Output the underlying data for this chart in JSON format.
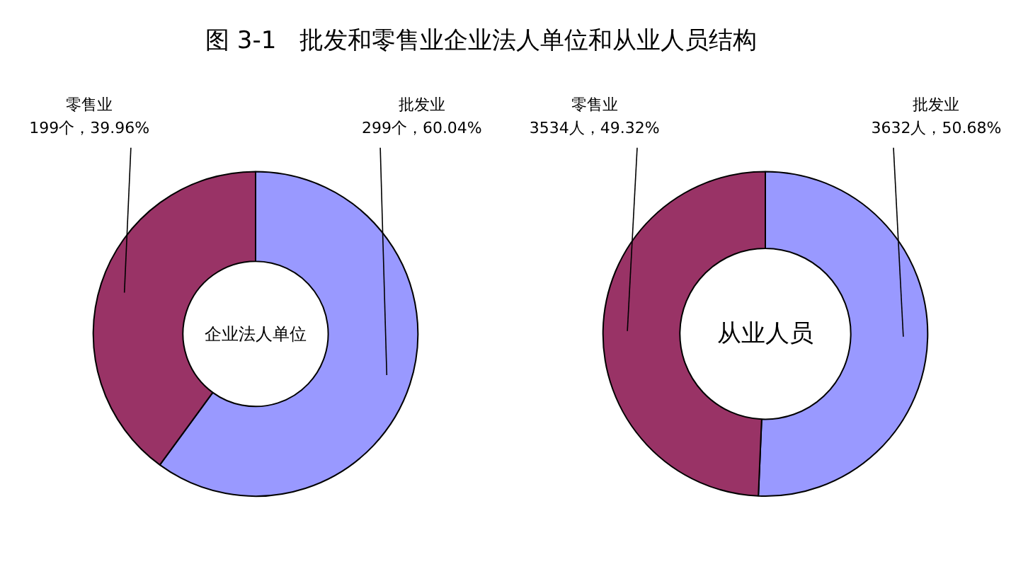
{
  "chart_data": [
    {
      "type": "donut",
      "title": "图 3-1   批发和零售业企业法人单位和从业人员结构",
      "categories": [
        "批发业",
        "零售业"
      ],
      "values": [
        299,
        199
      ],
      "colors": [
        "#9999ff",
        "#993366"
      ],
      "value_labels": [
        "299个，60.04%",
        "199个，39.96%"
      ],
      "annotations": [
        "企业法人单位"
      ],
      "legend": false
    },
    {
      "type": "donut",
      "categories": [
        "批发业",
        "零售业"
      ],
      "values": [
        3632,
        3534
      ],
      "colors": [
        "#9999ff",
        "#993366"
      ],
      "value_labels": [
        "3632人，50.68%",
        "3534人，49.32%"
      ],
      "annotations": [
        "从业人员"
      ],
      "legend": false
    }
  ]
}
